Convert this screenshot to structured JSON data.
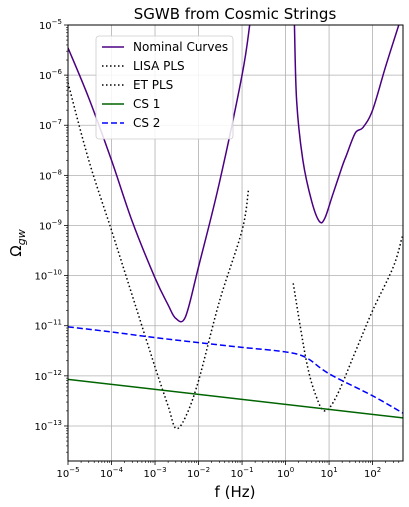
{
  "chart_data": {
    "type": "line",
    "title": "SGWB from Cosmic Strings",
    "xlabel": "f (Hz)",
    "ylabel": "Ω_gw",
    "x_scale": "log",
    "y_scale": "log",
    "xlim": [
      1e-05,
      500
    ],
    "ylim": [
      2e-14,
      1e-05
    ],
    "grid": true,
    "legend_position": "top-left",
    "x_ticks": [
      {
        "value": 1e-05,
        "mant": "10",
        "exp": "−5"
      },
      {
        "value": 0.0001,
        "mant": "10",
        "exp": "−4"
      },
      {
        "value": 0.001,
        "mant": "10",
        "exp": "−3"
      },
      {
        "value": 0.01,
        "mant": "10",
        "exp": "−2"
      },
      {
        "value": 0.1,
        "mant": "10",
        "exp": "−1"
      },
      {
        "value": 1,
        "mant": "10",
        "exp": "0"
      },
      {
        "value": 10,
        "mant": "10",
        "exp": "1"
      },
      {
        "value": 100,
        "mant": "10",
        "exp": "2"
      }
    ],
    "y_ticks": [
      {
        "value": 1e-05,
        "mant": "10",
        "exp": "−5"
      },
      {
        "value": 1e-06,
        "mant": "10",
        "exp": "−6"
      },
      {
        "value": 1e-07,
        "mant": "10",
        "exp": "−7"
      },
      {
        "value": 1e-08,
        "mant": "10",
        "exp": "−8"
      },
      {
        "value": 1e-09,
        "mant": "10",
        "exp": "−9"
      },
      {
        "value": 1e-10,
        "mant": "10",
        "exp": "−10"
      },
      {
        "value": 1e-11,
        "mant": "10",
        "exp": "−11"
      },
      {
        "value": 1e-12,
        "mant": "10",
        "exp": "−12"
      },
      {
        "value": 1e-13,
        "mant": "10",
        "exp": "−13"
      }
    ],
    "series": [
      {
        "name": "Nominal Curves",
        "color": "#4b0082",
        "dash": "solid",
        "in_legend": true,
        "points": [
          [
            1e-05,
            3.5e-06
          ],
          [
            3e-05,
            3.5e-07
          ],
          [
            0.0001,
            2e-08
          ],
          [
            0.0003,
            1.2e-09
          ],
          [
            0.001,
            9e-11
          ],
          [
            0.002,
            2.6e-11
          ],
          [
            0.003,
            1.4e-11
          ],
          [
            0.005,
            1.5e-11
          ],
          [
            0.01,
            1.5e-10
          ],
          [
            0.03,
            7e-09
          ],
          [
            0.1,
            1e-06
          ],
          [
            0.15,
            1e-05
          ]
        ]
      },
      {
        "name": "",
        "color": "#4b0082",
        "dash": "solid",
        "in_legend": false,
        "points": [
          [
            1.6,
            1e-05
          ],
          [
            1.8,
            3e-07
          ],
          [
            2.5,
            2e-08
          ],
          [
            4,
            3e-09
          ],
          [
            6,
            1.2e-09
          ],
          [
            8,
            1.4e-09
          ],
          [
            12,
            4e-09
          ],
          [
            20,
            1.5e-08
          ],
          [
            25,
            2.5e-08
          ],
          [
            40,
            7e-08
          ],
          [
            60,
            9e-08
          ],
          [
            100,
            2e-07
          ],
          [
            200,
            1.5e-06
          ],
          [
            400,
            1e-05
          ]
        ]
      },
      {
        "name": "LISA PLS",
        "color": "#000000",
        "dash": "dotted",
        "in_legend": true,
        "points": [
          [
            1e-05,
            7e-07
          ],
          [
            3e-05,
            2e-08
          ],
          [
            0.0001,
            8e-10
          ],
          [
            0.0003,
            4e-11
          ],
          [
            0.001,
            1.5e-12
          ],
          [
            0.002,
            2.5e-13
          ],
          [
            0.003,
            9e-14
          ],
          [
            0.005,
            1.5e-13
          ],
          [
            0.01,
            8e-13
          ],
          [
            0.03,
            3e-11
          ],
          [
            0.1,
            8e-10
          ],
          [
            0.14,
            5e-09
          ]
        ]
      },
      {
        "name": "ET PLS",
        "color": "#000000",
        "dash": "dotted",
        "in_legend": true,
        "points": [
          [
            1.5,
            7e-11
          ],
          [
            3,
            2e-12
          ],
          [
            5,
            4e-13
          ],
          [
            8,
            2e-13
          ],
          [
            15,
            4e-13
          ],
          [
            40,
            3e-12
          ],
          [
            100,
            2e-11
          ],
          [
            300,
            1.5e-10
          ],
          [
            480,
            6e-10
          ]
        ]
      },
      {
        "name": "CS 1",
        "color": "#006400",
        "dash": "solid",
        "in_legend": true,
        "points": [
          [
            1e-05,
            8.5e-13
          ],
          [
            500,
            1.45e-13
          ]
        ]
      },
      {
        "name": "CS 2",
        "color": "#0000ff",
        "dash": "dashed",
        "in_legend": true,
        "points": [
          [
            1e-05,
            9.5e-12
          ],
          [
            0.0001,
            7.5e-12
          ],
          [
            0.001,
            5.8e-12
          ],
          [
            0.01,
            4.6e-12
          ],
          [
            0.1,
            3.7e-12
          ],
          [
            1,
            3e-12
          ],
          [
            3,
            2.3e-12
          ],
          [
            10,
            1.1e-12
          ],
          [
            100,
            4e-13
          ],
          [
            500,
            1.8e-13
          ]
        ]
      }
    ]
  }
}
